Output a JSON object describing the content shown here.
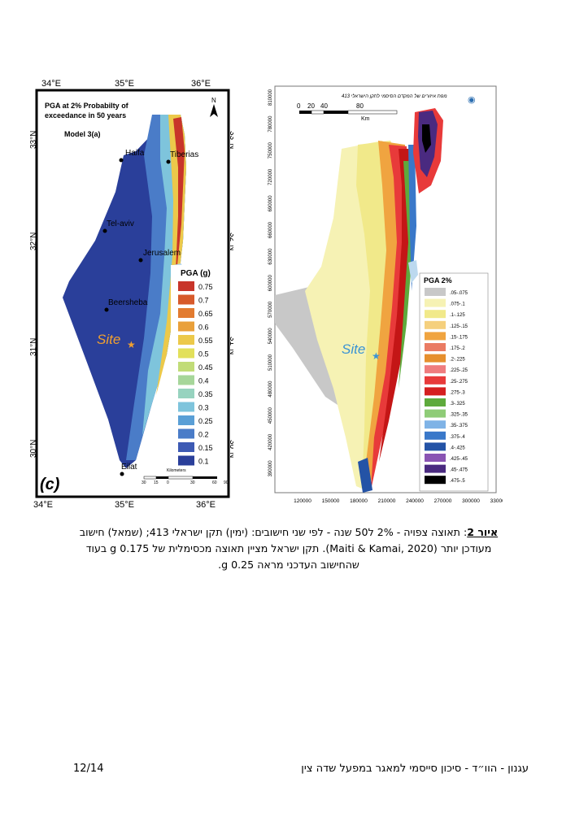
{
  "left_map": {
    "top_ticks": [
      "34°E",
      "35°E",
      "36°E"
    ],
    "bottom_ticks": [
      "34°E",
      "35°E",
      "36°E"
    ],
    "lat_ticks": [
      "33°N",
      "32°N",
      "31°N",
      "30°N"
    ],
    "title": "PGA at 2% Probabilty of exceedance in 50 years",
    "title_line1": "PGA at 2% Probabilty of",
    "title_line2": "exceedance in 50 years",
    "model": "Model 3(a)",
    "north": "N",
    "cities": [
      "Haifa",
      "Tiberias",
      "Tel-aviv",
      "Jerusalem",
      "Beersheba",
      "Eilat"
    ],
    "site_label": "Site",
    "panel_label": "(c)",
    "scale_title": "Kilometers",
    "scale_ticks": [
      "30",
      "15",
      "0",
      "30",
      "60",
      "90"
    ],
    "legend_title": "PGA (g)",
    "legend": [
      {
        "label": "0.75",
        "color": "#c8352a"
      },
      {
        "label": "0.7",
        "color": "#d75a2b"
      },
      {
        "label": "0.65",
        "color": "#e27b30"
      },
      {
        "label": "0.6",
        "color": "#e9a03a"
      },
      {
        "label": "0.55",
        "color": "#ecc94a"
      },
      {
        "label": "0.5",
        "color": "#e2e05a"
      },
      {
        "label": "0.45",
        "color": "#c1dc78"
      },
      {
        "label": "0.4",
        "color": "#a6d69a"
      },
      {
        "label": "0.35",
        "color": "#97d3bf"
      },
      {
        "label": "0.3",
        "color": "#7ec4dc"
      },
      {
        "label": "0.25",
        "color": "#5a9fd6"
      },
      {
        "label": "0.2",
        "color": "#4a7cc8"
      },
      {
        "label": "0.15",
        "color": "#3d5ab4"
      },
      {
        "label": "0.1",
        "color": "#2a3f9a"
      }
    ]
  },
  "right_map": {
    "header": "מפת איזורים של המקדם הסיסמי לתקן הישראלי 413",
    "scale_ticks": [
      "0",
      "20",
      "40",
      "80"
    ],
    "scale_unit": "Km",
    "y_ticks": [
      "810000",
      "780000",
      "750000",
      "720000",
      "690000",
      "660000",
      "630000",
      "600000",
      "570000",
      "540000",
      "510000",
      "480000",
      "450000",
      "420000",
      "390000"
    ],
    "x_ticks": [
      "120000",
      "150000",
      "180000",
      "210000",
      "240000",
      "270000",
      "300000",
      "330000"
    ],
    "site_label": "Site",
    "legend_title": "PGA 2%",
    "legend": [
      {
        "label": ".05-.075",
        "color": "#c8c8c8"
      },
      {
        "label": ".075-.1",
        "color": "#f6f2b4"
      },
      {
        "label": ".1-.125",
        "color": "#f1e98a"
      },
      {
        "label": ".125-.15",
        "color": "#f5d07d"
      },
      {
        "label": ".15-.175",
        "color": "#f0a440"
      },
      {
        "label": ".175-.2",
        "color": "#ea7b63"
      },
      {
        "label": ".2-.225",
        "color": "#e68f2d"
      },
      {
        "label": ".225-.25",
        "color": "#ef7c7e"
      },
      {
        "label": ".25-.275",
        "color": "#e83a3a"
      },
      {
        "label": ".275-.3",
        "color": "#d51f1f"
      },
      {
        "label": ".3-.325",
        "color": "#5eaa3c"
      },
      {
        "label": ".325-.35",
        "color": "#8fcc77"
      },
      {
        "label": ".35-.375",
        "color": "#7fb3e6"
      },
      {
        "label": ".375-.4",
        "color": "#3a78c9"
      },
      {
        "label": ".4-.425",
        "color": "#2453a6"
      },
      {
        "label": ".425-.45",
        "color": "#8a54b3"
      },
      {
        "label": ".45-.475",
        "color": "#4a2a80"
      },
      {
        "label": ".475-.5",
        "color": "#000000"
      }
    ]
  },
  "caption": {
    "label": "איור 2",
    "line1": "תאוצה צפויה - 2% ל50 שנה - לפי שני חישובים: (ימין) תקן ישראלי 413; (שמאל) חישוב",
    "line2": "מעודכן יותר (Maiti & Kamai, 2020). תקן ישראל מציין תאוצה מכסימלית של 0.175 g בעוד",
    "line3": "שהחישוב העדכני מראה 0.25 g."
  },
  "footer": {
    "page": "12/14",
    "title": "עגנון - הוו״ד - סיכון סייסמי למאגר במפעל שדה צין"
  }
}
